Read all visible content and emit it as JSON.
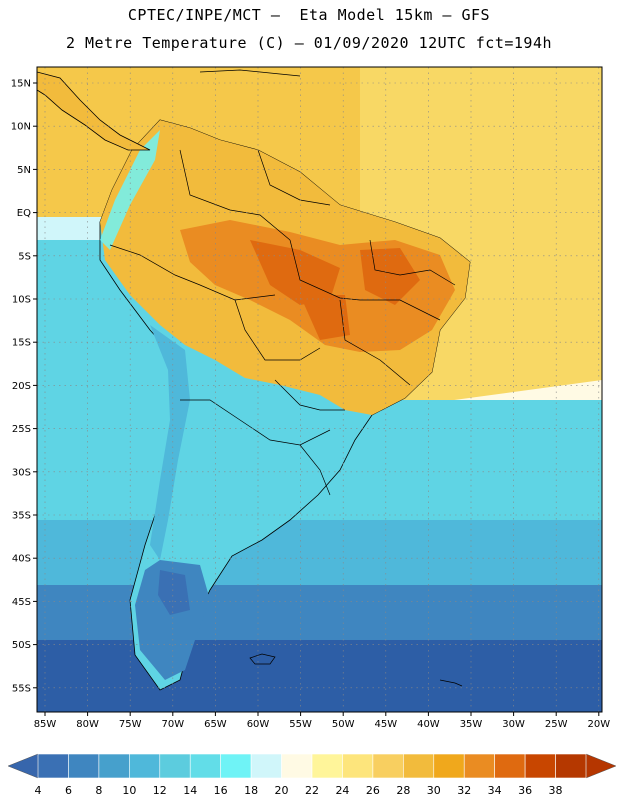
{
  "header": {
    "line1": "CPTEC/INPE/MCT –  Eta Model 15km – GFS",
    "line2": "2 Metre Temperature (C) – 01/09/2020 12UTC fct=194h"
  },
  "map": {
    "lat_labels": [
      "15N",
      "10N",
      "5N",
      "EQ",
      "5S",
      "10S",
      "15S",
      "20S",
      "25S",
      "30S",
      "35S",
      "40S",
      "45S",
      "50S",
      "55S"
    ],
    "lon_labels": [
      "85W",
      "80W",
      "75W",
      "70W",
      "65W",
      "60W",
      "55W",
      "50W",
      "45W",
      "40W",
      "35W",
      "30W",
      "25W",
      "20W"
    ]
  },
  "colorbar": {
    "labels": [
      "4",
      "6",
      "8",
      "10",
      "12",
      "14",
      "16",
      "18",
      "20",
      "22",
      "24",
      "26",
      "28",
      "30",
      "32",
      "34",
      "36",
      "38"
    ],
    "colors": [
      "#3a70b4",
      "#3f86c0",
      "#46a0cc",
      "#4fb8da",
      "#5cccde",
      "#62dde8",
      "#6ff3f6",
      "#d0f6fa",
      "#fffae4",
      "#fff59a",
      "#fde57c",
      "#f8cf60",
      "#f2bb3c",
      "#f0a81c",
      "#ea8c22",
      "#df6a10",
      "#c84600",
      "#b53800"
    ],
    "low_color": "#3766ac",
    "high_color": "#b53600"
  },
  "fields": {
    "ocean_deep": "#2d5ea6",
    "ocean_mid": "#3e84c2",
    "ocean_light": "#55b7df",
    "ocean_cyan": "#5fd4e4",
    "atlantic_warm": "#f7d75e",
    "land_warm": "#f2bb3c",
    "land_hot": "#ea8c22",
    "land_hottest": "#df6a10"
  }
}
